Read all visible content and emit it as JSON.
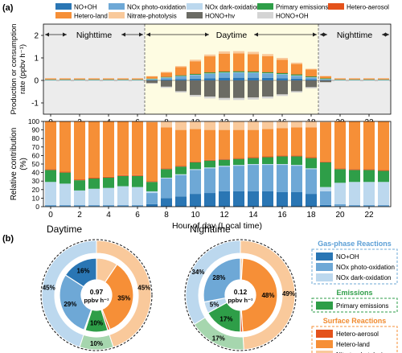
{
  "panel_labels": {
    "a": "(a)",
    "b": "(b)"
  },
  "colors": {
    "NO+OH": "#2a76b4",
    "NOx photo-oxidation": "#6ea8d6",
    "NOx dark-oxidation": "#bcd8ee",
    "Primary emissions": "#2e9e48",
    "Hetero-aerosol": "#e4521b",
    "Hetero-land": "#f68f37",
    "Nitrate-photolysis": "#f9c99b",
    "HONO+hv": "#6b6b64",
    "HONO+OH": "#d4d4d4"
  },
  "legend": [
    "NO+OH",
    "NOx photo-oxidation",
    "NOx dark-oxidation",
    "Primary emissions",
    "Hetero-aerosol",
    "Hetero-land",
    "Nitrate-photolysis",
    "HONO+hv",
    "HONO+OH"
  ],
  "periods": {
    "night1": "Nighttime",
    "day": "Daytime",
    "night2": "Nighttime"
  },
  "chart_data": [
    {
      "type": "bar",
      "stacked": true,
      "ylabel": "Production or consumption rate (ppbv h⁻¹)",
      "ylim": [
        -1.5,
        2.5
      ],
      "yticks": [
        -1,
        0,
        1,
        2
      ],
      "xticks": [
        0,
        2,
        4,
        6,
        8,
        10,
        12,
        14,
        16,
        18,
        20,
        22
      ],
      "x": [
        0,
        1,
        2,
        3,
        4,
        5,
        6,
        7,
        8,
        9,
        10,
        11,
        12,
        13,
        14,
        15,
        16,
        17,
        18,
        19,
        20,
        21,
        22,
        23
      ],
      "series": [
        {
          "name": "NO+OH",
          "values": [
            0.01,
            0.01,
            0.01,
            0.01,
            0.01,
            0.01,
            0.01,
            0.02,
            0.04,
            0.06,
            0.08,
            0.1,
            0.12,
            0.12,
            0.12,
            0.11,
            0.1,
            0.08,
            0.05,
            0.02,
            0.01,
            0.01,
            0.01,
            0.01
          ]
        },
        {
          "name": "NOx photo-oxidation",
          "values": [
            0.01,
            0.01,
            0.01,
            0.01,
            0.01,
            0.01,
            0.01,
            0.03,
            0.08,
            0.12,
            0.16,
            0.2,
            0.22,
            0.23,
            0.22,
            0.2,
            0.17,
            0.13,
            0.08,
            0.03,
            0.01,
            0.01,
            0.01,
            0.01
          ]
        },
        {
          "name": "NOx dark-oxidation",
          "values": [
            0.01,
            0.01,
            0.01,
            0.01,
            0.01,
            0.01,
            0.01,
            0.01,
            0.01,
            0.01,
            0.01,
            0.01,
            0.01,
            0.01,
            0.01,
            0.01,
            0.01,
            0.01,
            0.01,
            0.01,
            0.01,
            0.01,
            0.01,
            0.01
          ]
        },
        {
          "name": "Primary emissions",
          "values": [
            0.01,
            0.01,
            0.01,
            0.01,
            0.01,
            0.01,
            0.01,
            0.02,
            0.03,
            0.04,
            0.04,
            0.05,
            0.05,
            0.05,
            0.05,
            0.05,
            0.05,
            0.05,
            0.04,
            0.03,
            0.01,
            0.01,
            0.01,
            0.01
          ]
        },
        {
          "name": "Hetero-aerosol",
          "values": [
            0.0,
            0.0,
            0.0,
            0.0,
            0.0,
            0.0,
            0.0,
            0.0,
            0.01,
            0.01,
            0.01,
            0.01,
            0.01,
            0.01,
            0.01,
            0.01,
            0.01,
            0.01,
            0.01,
            0.0,
            0.0,
            0.0,
            0.0,
            0.0
          ]
        },
        {
          "name": "Hetero-land",
          "values": [
            0.05,
            0.05,
            0.05,
            0.05,
            0.05,
            0.05,
            0.05,
            0.1,
            0.18,
            0.35,
            0.55,
            0.7,
            0.78,
            0.78,
            0.76,
            0.7,
            0.58,
            0.45,
            0.3,
            0.1,
            0.05,
            0.05,
            0.05,
            0.05
          ]
        },
        {
          "name": "Nitrate-photolysis",
          "values": [
            0.0,
            0.0,
            0.0,
            0.0,
            0.0,
            0.0,
            0.0,
            0.01,
            0.03,
            0.05,
            0.07,
            0.08,
            0.1,
            0.1,
            0.1,
            0.09,
            0.08,
            0.06,
            0.03,
            0.01,
            0.0,
            0.0,
            0.0,
            0.0
          ]
        },
        {
          "name": "HONO+hv",
          "values": [
            0.0,
            0.0,
            0.0,
            0.0,
            0.0,
            0.0,
            0.0,
            -0.12,
            -0.28,
            -0.48,
            -0.65,
            -0.72,
            -0.78,
            -0.78,
            -0.76,
            -0.72,
            -0.62,
            -0.48,
            -0.3,
            -0.08,
            0.0,
            0.0,
            0.0,
            0.0
          ]
        },
        {
          "name": "HONO+OH",
          "values": [
            -0.01,
            -0.01,
            -0.01,
            -0.01,
            -0.01,
            -0.01,
            -0.01,
            -0.03,
            -0.05,
            -0.06,
            -0.07,
            -0.08,
            -0.09,
            -0.09,
            -0.09,
            -0.08,
            -0.07,
            -0.06,
            -0.05,
            -0.02,
            -0.01,
            -0.01,
            -0.01,
            -0.01
          ]
        }
      ]
    },
    {
      "type": "bar",
      "stacked": true,
      "ylabel": "Relative contribution (%)",
      "xlabel": "Hour of day (Local time)",
      "ylim": [
        0,
        100
      ],
      "yticks": [
        0,
        10,
        20,
        30,
        40,
        50,
        60,
        70,
        80,
        90,
        100
      ],
      "xticks": [
        0,
        2,
        4,
        6,
        8,
        10,
        12,
        14,
        16,
        18,
        20,
        22
      ],
      "x": [
        0,
        1,
        2,
        3,
        4,
        5,
        6,
        7,
        8,
        9,
        10,
        11,
        12,
        13,
        14,
        15,
        16,
        17,
        18,
        19,
        20,
        21,
        22,
        23
      ],
      "series": [
        {
          "name": "NO+OH",
          "values": [
            0,
            0,
            0,
            0,
            0,
            0,
            0,
            3,
            10,
            12,
            15,
            16,
            18,
            18,
            18,
            18,
            17,
            17,
            15,
            2,
            0,
            0,
            0,
            0
          ]
        },
        {
          "name": "NOx photo-oxidation",
          "values": [
            2,
            2,
            2,
            2,
            2,
            2,
            2,
            13,
            23,
            25,
            28,
            29,
            29,
            30,
            31,
            31,
            32,
            31,
            29,
            16,
            3,
            2,
            2,
            2
          ]
        },
        {
          "name": "NOx dark-oxidation",
          "values": [
            27,
            25,
            17,
            19,
            20,
            22,
            21,
            2,
            1,
            1,
            1,
            1,
            1,
            1,
            1,
            1,
            1,
            1,
            1,
            5,
            25,
            27,
            27,
            27
          ]
        },
        {
          "name": "Primary emissions",
          "values": [
            14,
            13,
            12,
            12,
            12,
            12,
            13,
            11,
            10,
            9,
            8,
            8,
            7,
            7,
            7,
            8,
            9,
            10,
            12,
            29,
            16,
            14,
            14,
            13
          ]
        },
        {
          "name": "Hetero-aerosol",
          "values": [
            1,
            1,
            1,
            1,
            1,
            1,
            1,
            1,
            1,
            1,
            1,
            1,
            1,
            1,
            1,
            1,
            1,
            1,
            1,
            1,
            1,
            1,
            1,
            1
          ]
        },
        {
          "name": "Hetero-land",
          "values": [
            56,
            59,
            68,
            66,
            65,
            63,
            63,
            69,
            48,
            42,
            38,
            35,
            34,
            33,
            32,
            32,
            32,
            33,
            35,
            46,
            55,
            56,
            56,
            57
          ]
        },
        {
          "name": "Nitrate-photolysis",
          "values": [
            0,
            0,
            0,
            0,
            0,
            0,
            0,
            1,
            7,
            10,
            9,
            10,
            10,
            10,
            10,
            9,
            8,
            7,
            7,
            1,
            0,
            0,
            0,
            0
          ]
        }
      ]
    },
    {
      "type": "pie",
      "title": "Daytime",
      "center_value": "0.97",
      "center_unit": "ppbv h⁻¹",
      "outer": [
        {
          "name": "Gas-phase Reactions",
          "value": 45,
          "label": "45%"
        },
        {
          "name": "Emissions",
          "value": 10,
          "label": "10%"
        },
        {
          "name": "Surface Reactions",
          "value": 45,
          "label": "45%"
        }
      ],
      "inner": [
        {
          "name": "NO+OH",
          "value": 16,
          "label": "16%"
        },
        {
          "name": "NOx photo-oxidation",
          "value": 29,
          "label": "29%"
        },
        {
          "name": "NOx dark-oxidation",
          "value": 0.5,
          "label": ""
        },
        {
          "name": "Primary emissions",
          "value": 10,
          "label": "10%"
        },
        {
          "name": "Hetero-aerosol",
          "value": 1,
          "label": ""
        },
        {
          "name": "Hetero-land",
          "value": 35,
          "label": "35%"
        },
        {
          "name": "Nitrate-photolysis",
          "value": 9.5,
          "label": ""
        }
      ]
    },
    {
      "type": "pie",
      "title": "Nighttime",
      "center_value": "0.12",
      "center_unit": "ppbv h⁻¹",
      "outer": [
        {
          "name": "Gas-phase Reactions",
          "value": 34,
          "label": "34%"
        },
        {
          "name": "Emissions",
          "value": 17,
          "label": "17%"
        },
        {
          "name": "Surface Reactions",
          "value": 49,
          "label": "49%"
        }
      ],
      "inner": [
        {
          "name": "NOx photo-oxidation",
          "value": 28,
          "label": "28%"
        },
        {
          "name": "NOx dark-oxidation",
          "value": 5,
          "label": "5%"
        },
        {
          "name": "Primary emissions",
          "value": 17,
          "label": "17%"
        },
        {
          "name": "Hetero-aerosol",
          "value": 1,
          "label": ""
        },
        {
          "name": "Hetero-land",
          "value": 48,
          "label": "48%"
        },
        {
          "name": "Nitrate-photolysis",
          "value": 1,
          "label": ""
        }
      ]
    }
  ],
  "groups": [
    {
      "title": "Gas-phase Reactions",
      "title_color": "#5c9fd6",
      "border": "#6ea8d6",
      "items": [
        "NO+OH",
        "NOx photo-oxidation",
        "NOx dark-oxidation"
      ]
    },
    {
      "title": "Emissions",
      "title_color": "#2e9e48",
      "border": "#2e9e48",
      "items": [
        "Primary emissions"
      ]
    },
    {
      "title": "Surface Reactions",
      "title_color": "#f08a2e",
      "border": "#f68f37",
      "items": [
        "Hetero-aerosol",
        "Hetero-land",
        "Nitrate-photolysis"
      ]
    }
  ]
}
